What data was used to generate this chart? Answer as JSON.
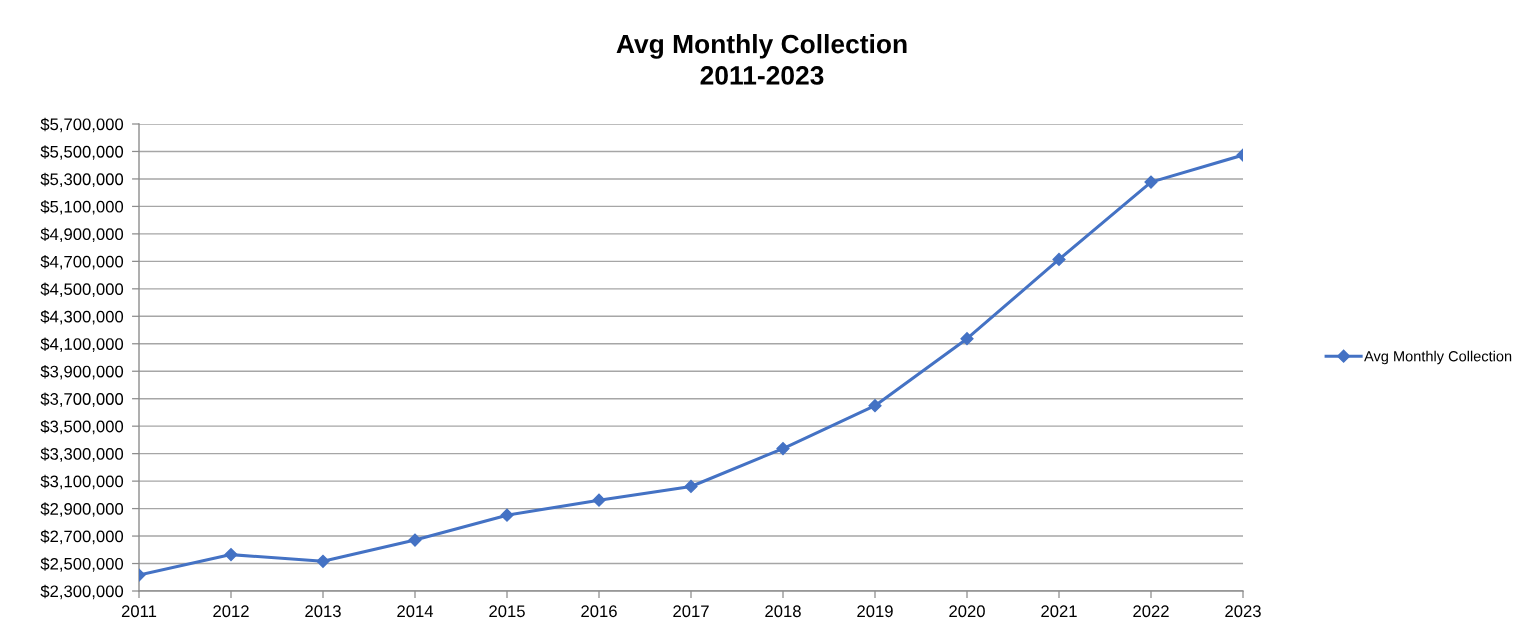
{
  "chart_data": {
    "type": "line",
    "title": "Avg Monthly Collection\n2011-2023",
    "categories": [
      "2011",
      "2012",
      "2013",
      "2014",
      "2015",
      "2016",
      "2017",
      "2018",
      "2019",
      "2020",
      "2021",
      "2022",
      "2023"
    ],
    "series": [
      {
        "name": "Avg Monthly Collection",
        "color": "#4472c4",
        "values": [
          2416000,
          2565000,
          2516000,
          2671000,
          2852000,
          2961000,
          3061000,
          3337000,
          3649000,
          4137000,
          4714000,
          5277000,
          5474000
        ]
      }
    ],
    "ylim": [
      2300000,
      5700000
    ],
    "yticks": [
      {
        "value": 2300000,
        "label": "$2,300,000"
      },
      {
        "value": 2500000,
        "label": "$2,500,000"
      },
      {
        "value": 2700000,
        "label": "$2,700,000"
      },
      {
        "value": 2900000,
        "label": "$2,900,000"
      },
      {
        "value": 3100000,
        "label": "$3,100,000"
      },
      {
        "value": 3300000,
        "label": "$3,300,000"
      },
      {
        "value": 3500000,
        "label": "$3,500,000"
      },
      {
        "value": 3700000,
        "label": "$3,700,000"
      },
      {
        "value": 3900000,
        "label": "$3,900,000"
      },
      {
        "value": 4100000,
        "label": "$4,100,000"
      },
      {
        "value": 4300000,
        "label": "$4,300,000"
      },
      {
        "value": 4500000,
        "label": "$4,500,000"
      },
      {
        "value": 4700000,
        "label": "$4,700,000"
      },
      {
        "value": 4900000,
        "label": "$4,900,000"
      },
      {
        "value": 5100000,
        "label": "$5,100,000"
      },
      {
        "value": 5300000,
        "label": "$5,300,000"
      },
      {
        "value": 5500000,
        "label": "$5,500,000"
      },
      {
        "value": 5700000,
        "label": "$5,700,000"
      }
    ],
    "grid": "y",
    "legend": "right",
    "marker": "diamond",
    "line_style": "solid"
  }
}
